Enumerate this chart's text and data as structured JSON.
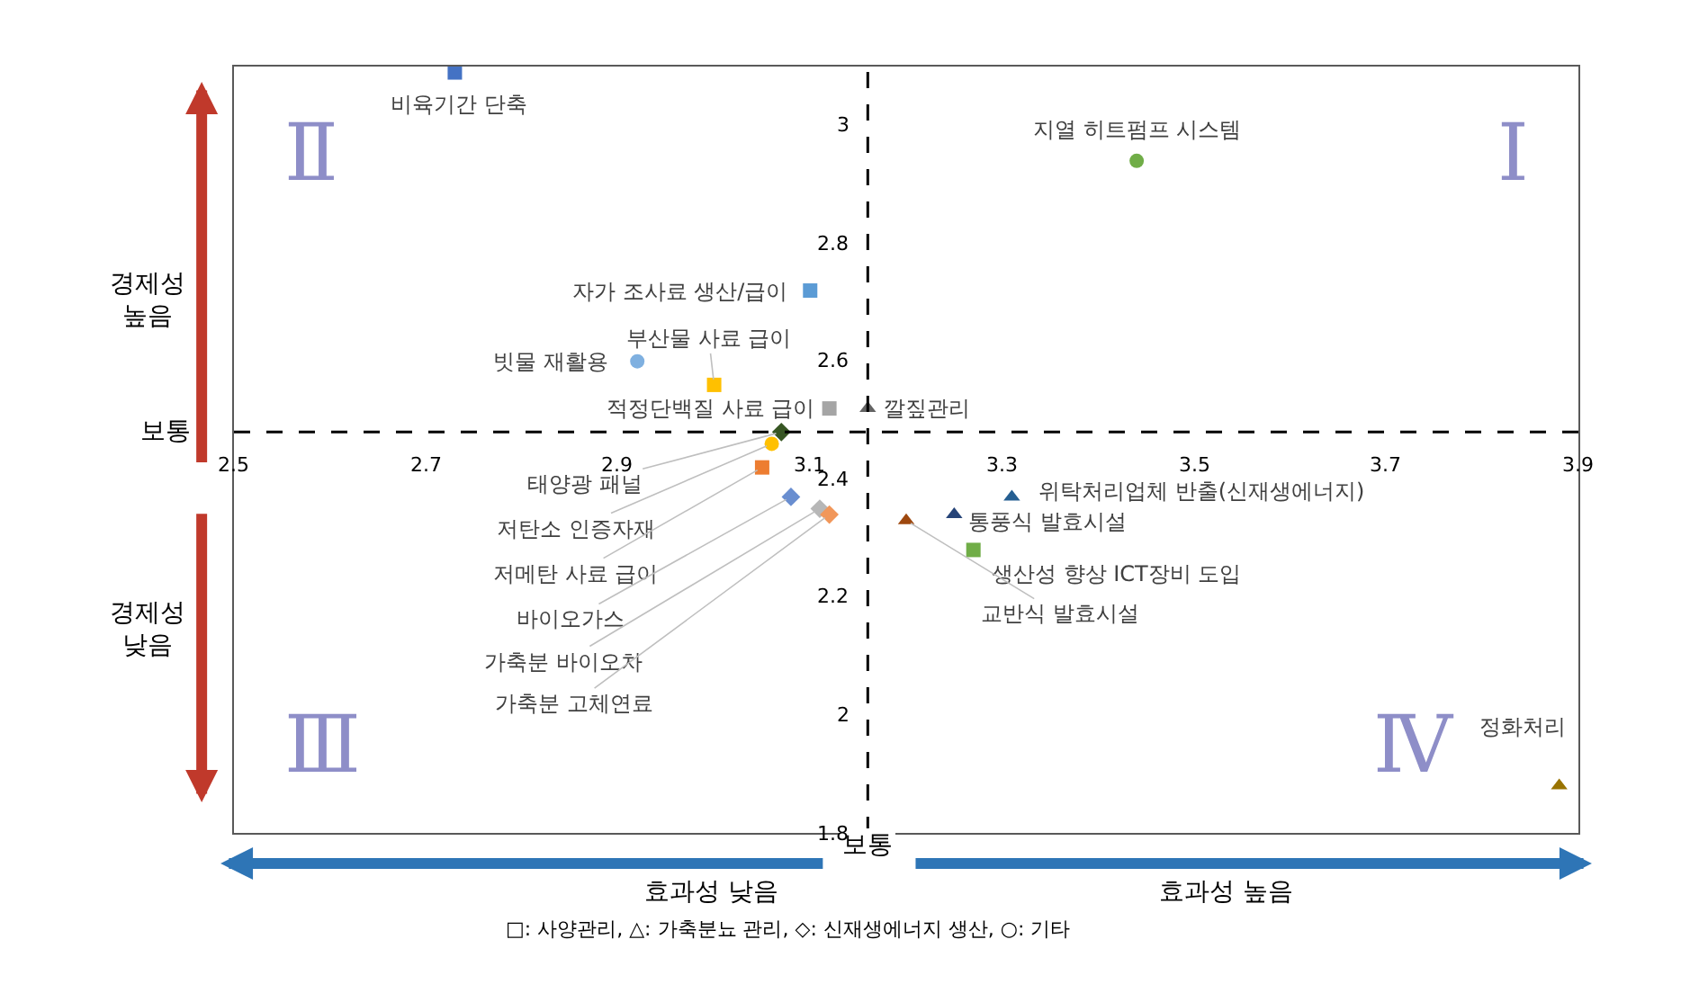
{
  "chart_data": {
    "type": "scatter",
    "xlim": [
      2.5,
      3.9
    ],
    "ylim": [
      1.8,
      3.1
    ],
    "xticks": [
      2.5,
      2.7,
      2.9,
      3.1,
      3.3,
      3.5,
      3.7,
      3.9
    ],
    "yticks": [
      1.8,
      2,
      2.2,
      2.4,
      2.6,
      2.8,
      3
    ],
    "legend": false,
    "series": [
      {
        "name": "비육기간 단축",
        "color": "#4472c4",
        "marker": "square",
        "x": [
          2.73
        ],
        "values": [
          3.09
        ]
      },
      {
        "name": "지열 히트펌프 시스템",
        "color": "#70ad47",
        "marker": "circle",
        "x": [
          3.44
        ],
        "values": [
          2.94
        ]
      },
      {
        "name": "자가 조사료 생산/급이",
        "color": "#5b9bd5",
        "marker": "square",
        "x": [
          3.1
        ],
        "values": [
          2.72
        ]
      },
      {
        "name": "빗물 재활용",
        "color": "#7fb0e0",
        "marker": "circle",
        "x": [
          2.92
        ],
        "values": [
          2.6
        ]
      },
      {
        "name": "부산물 사료 급이",
        "color": "#ffc000",
        "marker": "square",
        "x": [
          3.0
        ],
        "values": [
          2.56
        ]
      },
      {
        "name": "적정단백질 사료 급이",
        "color": "#a5a5a5",
        "marker": "square",
        "x": [
          3.12
        ],
        "values": [
          2.52
        ]
      },
      {
        "name": "깔짚관리",
        "color": "#636363",
        "marker": "triangle",
        "x": [
          3.16
        ],
        "values": [
          2.52
        ]
      },
      {
        "name": "태양광 패널",
        "color": "#375623",
        "marker": "diamond",
        "x": [
          3.07
        ],
        "values": [
          2.48
        ]
      },
      {
        "name": "저탄소 인증자재",
        "color": "#ffc000",
        "marker": "circle",
        "x": [
          3.06
        ],
        "values": [
          2.46
        ]
      },
      {
        "name": "저메탄 사료 급이",
        "color": "#ed7d31",
        "marker": "square",
        "x": [
          3.05
        ],
        "values": [
          2.42
        ]
      },
      {
        "name": "바이오가스",
        "color": "#698ed0",
        "marker": "diamond",
        "x": [
          3.08
        ],
        "values": [
          2.37
        ]
      },
      {
        "name": "가축분 바이오차",
        "color": "#b7b7b7",
        "marker": "diamond",
        "x": [
          3.11
        ],
        "values": [
          2.35
        ]
      },
      {
        "name": "가축분 고체연료",
        "color": "#f1975a",
        "marker": "diamond",
        "x": [
          3.12
        ],
        "values": [
          2.34
        ]
      },
      {
        "name": "위탁처리업체 반출(신재생에너지)",
        "color": "#255e91",
        "marker": "triangle",
        "x": [
          3.31
        ],
        "values": [
          2.37
        ]
      },
      {
        "name": "통풍식 발효시설",
        "color": "#264478",
        "marker": "triangle",
        "x": [
          3.25
        ],
        "values": [
          2.34
        ]
      },
      {
        "name": "생산성 향상 ICT장비 도입",
        "color": "#70ad47",
        "marker": "square",
        "x": [
          3.27
        ],
        "values": [
          2.28
        ]
      },
      {
        "name": "교반식 발효시설",
        "color": "#9e480e",
        "marker": "triangle",
        "x": [
          3.2
        ],
        "values": [
          2.33
        ]
      },
      {
        "name": "정화처리",
        "color": "#997300",
        "marker": "triangle",
        "x": [
          3.88
        ],
        "values": [
          1.88
        ]
      }
    ],
    "ref_lines": [
      {
        "axis": "y",
        "value": 2.48,
        "label": "보통",
        "line_style": "dashed",
        "color": "#000000"
      },
      {
        "axis": "x",
        "value": 3.16,
        "label": "보통",
        "line_style": "dashed",
        "color": "#000000"
      }
    ],
    "annotations": [
      "Ⅱ",
      "Ⅰ",
      "Ⅲ",
      "Ⅳ",
      "경제성\n높음",
      "경제성\n낮음",
      "효과성 낮음",
      "효과성 높음",
      "□: 사양관리, △: 가축분뇨 관리, ◇: 신재생에너지 생산, ○: 기타"
    ]
  }
}
